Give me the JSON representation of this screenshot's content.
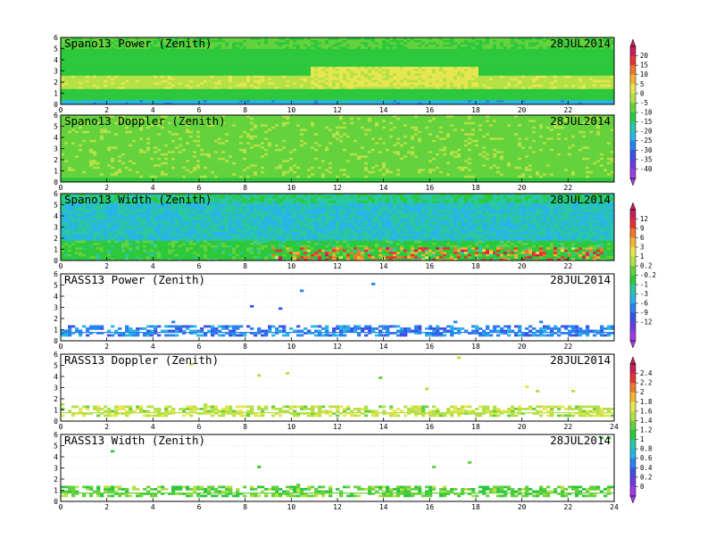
{
  "chart_data": [
    {
      "type": "heatmap",
      "title": "Spano13  Power  (Zenith)",
      "date": "28JUL2014",
      "x_ticks": [
        "0",
        "2",
        "4",
        "6",
        "8",
        "10",
        "12",
        "14",
        "16",
        "18",
        "20",
        "22"
      ],
      "y_ticks": [
        "0",
        "1",
        "2",
        "3",
        "4",
        "5",
        "6"
      ],
      "xlim": [
        0,
        24
      ],
      "ylim": [
        0,
        6
      ],
      "grid": false,
      "fill": "dense",
      "colorbar_group": 0
    },
    {
      "type": "heatmap",
      "title": "Spano13  Doppler  (Zenith)",
      "date": "28JUL2014",
      "x_ticks": [
        "0",
        "2",
        "4",
        "6",
        "8",
        "10",
        "12",
        "14",
        "16",
        "18",
        "20",
        "22"
      ],
      "y_ticks": [
        "0",
        "1",
        "2",
        "3",
        "4",
        "5",
        "6"
      ],
      "xlim": [
        0,
        24
      ],
      "ylim": [
        0,
        6
      ],
      "grid": false,
      "fill": "dense",
      "colorbar_group": 0
    },
    {
      "type": "heatmap",
      "title": "Spano13  Width  (Zenith)",
      "date": "28JUL2014",
      "x_ticks": [
        "0",
        "2",
        "4",
        "6",
        "8",
        "10",
        "12",
        "14",
        "16",
        "18",
        "20",
        "22"
      ],
      "y_ticks": [
        "0",
        "1",
        "2",
        "3",
        "4",
        "5",
        "6"
      ],
      "xlim": [
        0,
        24
      ],
      "ylim": [
        0,
        6
      ],
      "grid": false,
      "fill": "dense",
      "colorbar_group": 1
    },
    {
      "type": "heatmap",
      "title": "RASS13  Power  (Zenith)",
      "date": "28JUL2014",
      "x_ticks": [
        "0",
        "2",
        "4",
        "6",
        "8",
        "10",
        "12",
        "14",
        "16",
        "18",
        "20",
        "22"
      ],
      "y_ticks": [
        "0",
        "1",
        "2",
        "3",
        "4",
        "5",
        "6"
      ],
      "xlim": [
        0,
        24
      ],
      "ylim": [
        0,
        6
      ],
      "grid": true,
      "fill": "sparse-low",
      "colorbar_group": 1
    },
    {
      "type": "heatmap",
      "title": "RASS13  Doppler  (Zenith)",
      "date": "28JUL2014",
      "x_ticks": [
        "0",
        "2",
        "4",
        "6",
        "8",
        "10",
        "12",
        "14",
        "16",
        "18",
        "20",
        "22",
        "24"
      ],
      "y_ticks": [
        "0",
        "1",
        "2",
        "3",
        "4",
        "5",
        "6"
      ],
      "xlim": [
        0,
        24
      ],
      "ylim": [
        0,
        6
      ],
      "grid": true,
      "fill": "sparse-low",
      "colorbar_group": 2
    },
    {
      "type": "heatmap",
      "title": "RASS13  Width  (Zenith)",
      "date": "28JUL2014",
      "x_ticks": [
        "0",
        "2",
        "4",
        "6",
        "8",
        "10",
        "12",
        "14",
        "16",
        "18",
        "20",
        "22",
        "24"
      ],
      "y_ticks": [
        "0",
        "1",
        "2",
        "3",
        "4",
        "5",
        "6"
      ],
      "xlim": [
        0,
        24
      ],
      "ylim": [
        0,
        6
      ],
      "grid": true,
      "fill": "sparse-low",
      "colorbar_group": 2
    }
  ],
  "colorbars": [
    {
      "labels": [
        "20",
        "15",
        "10",
        "5",
        "0",
        "-5",
        "-10",
        "-15",
        "-20",
        "-25",
        "-30",
        "-35",
        "-40"
      ],
      "colors": [
        "#c81e5a",
        "#e83232",
        "#f0782d",
        "#f5b432",
        "#e6e650",
        "#b4e146",
        "#64d23c",
        "#2dc83c",
        "#28c8a0",
        "#28b4e6",
        "#2882f0",
        "#3c50e6",
        "#6a3ce0",
        "#a03ce6"
      ]
    },
    {
      "labels": [
        "12",
        "9",
        "6",
        "3",
        "1",
        "0.2",
        "-0.2",
        "-1",
        "-3",
        "-6",
        "-9",
        "-12"
      ],
      "colors": [
        "#c81e5a",
        "#e83232",
        "#f0782d",
        "#f5b432",
        "#e6e650",
        "#b4e146",
        "#64d23c",
        "#2dc83c",
        "#28c8a0",
        "#28b4e6",
        "#2882f0",
        "#3c50e6",
        "#6a3ce0",
        "#a03ce6"
      ]
    },
    {
      "labels": [
        "2.4",
        "2.2",
        "2",
        "1.8",
        "1.6",
        "1.4",
        "1.2",
        "1",
        "0.8",
        "0.6",
        "0.4",
        "0.2",
        "0"
      ],
      "colors": [
        "#c81e5a",
        "#e83232",
        "#f0782d",
        "#f5b432",
        "#e6e650",
        "#b4e146",
        "#64d23c",
        "#2dc83c",
        "#28c8a0",
        "#28b4e6",
        "#2882f0",
        "#3c50e6",
        "#6a3ce0",
        "#a03ce6"
      ]
    }
  ]
}
